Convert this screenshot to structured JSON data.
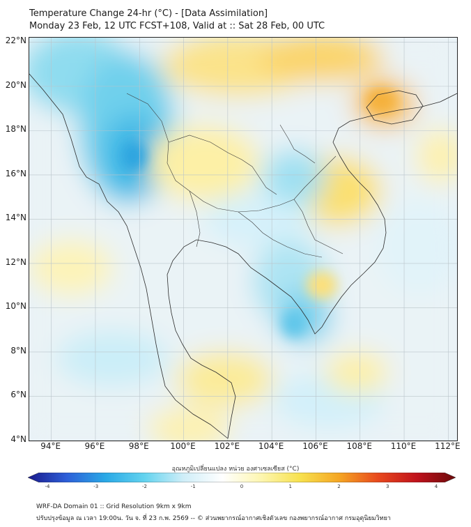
{
  "title": {
    "line1": "Temperature Change 24-hr (°C) - [Data Assimilation]",
    "line2": "Monday 23 Feb, 12 UTC FCST+108, Valid at :: Sat 28 Feb, 00 UTC"
  },
  "map": {
    "lat_labels": [
      "22°N",
      "20°N",
      "18°N",
      "16°N",
      "14°N",
      "12°N",
      "10°N",
      "8°N",
      "6°N",
      "4°N"
    ],
    "lon_labels": [
      "94°E",
      "96°E",
      "98°E",
      "100°E",
      "102°E",
      "104°E",
      "106°E",
      "108°E",
      "110°E",
      "112°E"
    ],
    "lat_range": [
      4,
      22.2
    ],
    "lon_range": [
      93,
      112.4
    ],
    "gridlines": true
  },
  "colorbar": {
    "title": "อุณหภูมิเปลี่ยนแปลง หน่วย องศาเซลเซียส (°C)",
    "min": -4,
    "max": 4,
    "ticks": [
      "-4",
      "-3",
      "-2",
      "-1",
      "0",
      "1",
      "2",
      "3",
      "4"
    ],
    "colors": [
      "#1a1a8c",
      "#2d5fd8",
      "#2aa9e6",
      "#63d3ef",
      "#cfeef8",
      "#ffffff",
      "#fdf6b0",
      "#f7e14e",
      "#f5a623",
      "#e8491d",
      "#c0121c",
      "#6b0a0a"
    ]
  },
  "footer": {
    "line1": "WRF-DA Domain 01 :: Grid Resolution 9km x 9km",
    "line2": "ปรับปรุงข้อมูล ณ เวลา 19:00น. วัน จ. ที่ 23 ก.พ. 2569 -- © ส่วนพยากรณ์อากาศเชิงตัวเลข กองพยากรณ์อากาศ กรมอุตุนิยมวิทยา"
  }
}
